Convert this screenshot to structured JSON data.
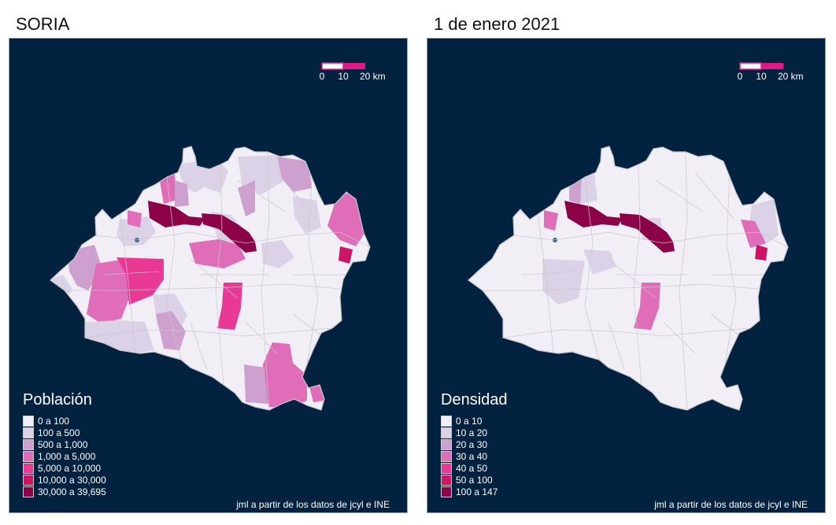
{
  "left": {
    "title": "SORIA",
    "legend_title": "Población",
    "legend": [
      {
        "label": "0 a 100",
        "color": "#f1eef6"
      },
      {
        "label": "100 a 500",
        "color": "#dcd2e8"
      },
      {
        "label": "500 a 1,000",
        "color": "#cda0cf"
      },
      {
        "label": "1,000 a 5,000",
        "color": "#df6db7"
      },
      {
        "label": "5,000 a 10,000",
        "color": "#e83a95"
      },
      {
        "label": "10,000 a 30,000",
        "color": "#cd1566"
      },
      {
        "label": "30,000 a 39,695",
        "color": "#8c0249"
      }
    ],
    "credit": "jml a partir de los datos de jcyl e INE",
    "scale": {
      "ticks": [
        "0",
        "10",
        "20 km"
      ]
    }
  },
  "right": {
    "title": "1 de enero 2021",
    "legend_title": "Densidad",
    "legend": [
      {
        "label": "0 a 10",
        "color": "#f1eef6"
      },
      {
        "label": "10 a 20",
        "color": "#dcd2e8"
      },
      {
        "label": "20 a 30",
        "color": "#cda0cf"
      },
      {
        "label": "30 a 40",
        "color": "#df6db7"
      },
      {
        "label": "40 a 50",
        "color": "#e83a95"
      },
      {
        "label": "50 a 100",
        "color": "#cd1566"
      },
      {
        "label": "100 a 147",
        "color": "#8c0249"
      }
    ],
    "credit": "jml a partir de los datos de jcyl e INE",
    "scale": {
      "ticks": [
        "0",
        "10",
        "20 km"
      ]
    }
  },
  "colors": {
    "background": "#022240",
    "border": "#c8c8cc",
    "scale_pink": "#e0198a",
    "water": "#2b6d8e"
  }
}
